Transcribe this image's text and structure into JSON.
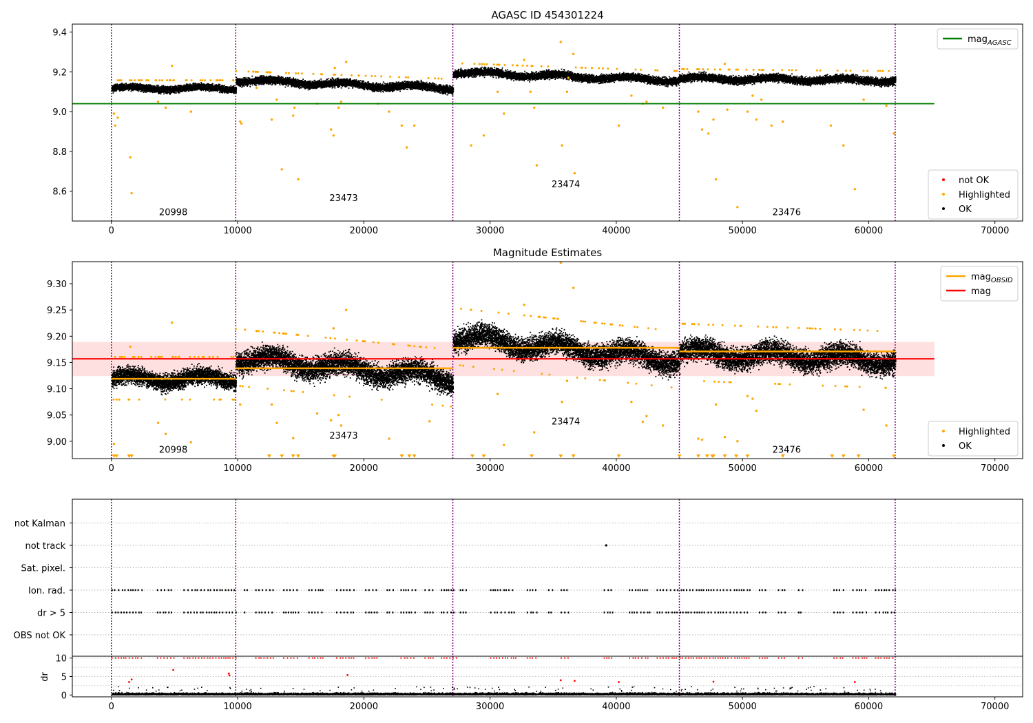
{
  "figure": {
    "title": "AGASC ID 454301224"
  },
  "chart_data": [
    {
      "type": "scatter",
      "title": "",
      "xlim": [
        -3100,
        72200
      ],
      "ylim": [
        8.45,
        9.44
      ],
      "xticks": [
        0,
        10000,
        20000,
        30000,
        40000,
        50000,
        60000,
        70000
      ],
      "yticks": [
        8.6,
        8.8,
        9.0,
        9.2,
        9.4
      ],
      "ytick_labels": [
        "8.6",
        "8.8",
        "9.0",
        "9.2",
        "9.4"
      ],
      "obsid_boundaries": [
        0,
        9850,
        27050,
        45000,
        62100
      ],
      "obsid_labels": [
        {
          "text": "20998",
          "x": 4900,
          "y": 8.48
        },
        {
          "text": "23473",
          "x": 18400,
          "y": 8.55
        },
        {
          "text": "23474",
          "x": 36000,
          "y": 8.62
        },
        {
          "text": "23476",
          "x": 53500,
          "y": 8.48
        }
      ],
      "lines": [
        {
          "name": "mag_AGASC",
          "color": "#008000",
          "x": [
            -3100,
            65200
          ],
          "y": [
            9.04,
            9.04
          ]
        }
      ],
      "segments": [
        {
          "x0": 0,
          "x1": 9850,
          "y0": 9.12,
          "y1": 9.12,
          "spread": 0.03
        },
        {
          "x0": 9850,
          "x1": 27050,
          "y0": 9.16,
          "y1": 9.12,
          "spread": 0.035
        },
        {
          "x0": 27050,
          "x1": 45000,
          "y0": 9.2,
          "y1": 9.16,
          "spread": 0.035
        },
        {
          "x0": 45000,
          "x1": 62100,
          "y0": 9.17,
          "y1": 9.16,
          "spread": 0.035
        }
      ],
      "highlighted": [
        [
          200,
          8.99
        ],
        [
          300,
          8.93
        ],
        [
          500,
          8.97
        ],
        [
          1500,
          8.77
        ],
        [
          1600,
          8.59
        ],
        [
          3700,
          9.05
        ],
        [
          4300,
          9.02
        ],
        [
          4800,
          9.23
        ],
        [
          6300,
          9.0
        ],
        [
          10200,
          8.95
        ],
        [
          10300,
          8.94
        ],
        [
          11500,
          9.12
        ],
        [
          12700,
          8.96
        ],
        [
          13100,
          9.06
        ],
        [
          13500,
          8.71
        ],
        [
          14400,
          8.98
        ],
        [
          14500,
          9.02
        ],
        [
          14800,
          8.66
        ],
        [
          16300,
          9.04
        ],
        [
          17400,
          8.91
        ],
        [
          17600,
          8.88
        ],
        [
          17700,
          9.22
        ],
        [
          18000,
          9.02
        ],
        [
          18200,
          9.05
        ],
        [
          18600,
          9.25
        ],
        [
          21100,
          9.04
        ],
        [
          22000,
          9.0
        ],
        [
          23000,
          8.93
        ],
        [
          23400,
          8.82
        ],
        [
          24000,
          8.93
        ],
        [
          28500,
          8.83
        ],
        [
          29500,
          8.88
        ],
        [
          30600,
          9.1
        ],
        [
          31100,
          8.99
        ],
        [
          32700,
          9.26
        ],
        [
          33200,
          9.1
        ],
        [
          33500,
          9.02
        ],
        [
          33700,
          8.73
        ],
        [
          35600,
          9.35
        ],
        [
          35700,
          8.83
        ],
        [
          36100,
          9.1
        ],
        [
          36200,
          9.17
        ],
        [
          36600,
          9.29
        ],
        [
          36700,
          8.69
        ],
        [
          40200,
          8.93
        ],
        [
          41200,
          9.08
        ],
        [
          42100,
          9.04
        ],
        [
          42400,
          9.05
        ],
        [
          43700,
          9.02
        ],
        [
          46500,
          9.0
        ],
        [
          46800,
          8.91
        ],
        [
          47300,
          8.89
        ],
        [
          47700,
          8.96
        ],
        [
          47900,
          8.66
        ],
        [
          48600,
          9.24
        ],
        [
          48800,
          9.01
        ],
        [
          49600,
          8.52
        ],
        [
          50400,
          9.0
        ],
        [
          50800,
          9.08
        ],
        [
          51100,
          8.96
        ],
        [
          51500,
          9.06
        ],
        [
          52300,
          8.93
        ],
        [
          53200,
          8.95
        ],
        [
          57000,
          8.93
        ],
        [
          58000,
          8.83
        ],
        [
          58900,
          8.61
        ],
        [
          59600,
          9.06
        ],
        [
          61400,
          9.03
        ],
        [
          62000,
          8.89
        ]
      ],
      "legend_upper": [
        {
          "label": "mag",
          "sub": "AGASC",
          "kind": "line",
          "color": "#008000"
        }
      ],
      "legend_lower": [
        {
          "label": "not OK",
          "kind": "dot",
          "color": "#ff0000"
        },
        {
          "label": "Highlighted",
          "kind": "dot",
          "color": "#ffa500"
        },
        {
          "label": "OK",
          "kind": "dot",
          "color": "#000000"
        }
      ]
    },
    {
      "type": "scatter",
      "title": "Magnitude Estimates",
      "xlim": [
        -3100,
        72200
      ],
      "ylim": [
        8.967,
        9.342
      ],
      "xticks": [
        0,
        10000,
        20000,
        30000,
        40000,
        50000,
        60000,
        70000
      ],
      "yticks": [
        9.0,
        9.05,
        9.1,
        9.15,
        9.2,
        9.25,
        9.3
      ],
      "ytick_labels": [
        "9.00",
        "9.05",
        "9.10",
        "9.15",
        "9.20",
        "9.25",
        "9.30"
      ],
      "obsid_boundaries": [
        0,
        9850,
        27050,
        45000,
        62100
      ],
      "obsid_labels": [
        {
          "text": "20998",
          "x": 4900,
          "y": 8.978
        },
        {
          "text": "23473",
          "x": 18400,
          "y": 9.005
        },
        {
          "text": "23474",
          "x": 36000,
          "y": 9.032
        },
        {
          "text": "23476",
          "x": 53500,
          "y": 8.978
        }
      ],
      "band": {
        "x0": -3100,
        "x1": 65200,
        "y0": 9.124,
        "y1": 9.189,
        "color": "#ff0000",
        "opacity": 0.12
      },
      "lines": [
        {
          "name": "mag",
          "color": "#ff0000",
          "x": [
            -3100,
            65200
          ],
          "y": [
            9.157,
            9.157
          ]
        }
      ],
      "obsid_mags": [
        {
          "x0": 0,
          "x1": 9850,
          "y": 9.119
        },
        {
          "x0": 9850,
          "x1": 27050,
          "y": 9.139
        },
        {
          "x0": 27050,
          "x1": 45000,
          "y": 9.178
        },
        {
          "x0": 45000,
          "x1": 62100,
          "y": 9.171
        }
      ],
      "segments": [
        {
          "x0": 0,
          "x1": 9850,
          "y0": 9.12,
          "y1": 9.12,
          "spread": 0.03
        },
        {
          "x0": 9850,
          "x1": 27050,
          "y0": 9.16,
          "y1": 9.12,
          "spread": 0.04
        },
        {
          "x0": 27050,
          "x1": 45000,
          "y0": 9.2,
          "y1": 9.155,
          "spread": 0.04
        },
        {
          "x0": 45000,
          "x1": 62100,
          "y0": 9.17,
          "y1": 9.155,
          "spread": 0.04
        }
      ],
      "highlighted": [
        [
          200,
          8.995
        ],
        [
          1500,
          9.18
        ],
        [
          3700,
          9.035
        ],
        [
          4300,
          9.014
        ],
        [
          4800,
          9.226
        ],
        [
          6300,
          8.998
        ],
        [
          10200,
          9.07
        ],
        [
          11500,
          9.21
        ],
        [
          12700,
          9.07
        ],
        [
          13100,
          9.035
        ],
        [
          14400,
          9.006
        ],
        [
          16300,
          9.053
        ],
        [
          17400,
          9.04
        ],
        [
          17600,
          9.215
        ],
        [
          18000,
          9.05
        ],
        [
          18200,
          9.03
        ],
        [
          18600,
          9.25
        ],
        [
          22000,
          9.005
        ],
        [
          25200,
          9.038
        ],
        [
          30600,
          9.09
        ],
        [
          31100,
          8.993
        ],
        [
          32700,
          9.26
        ],
        [
          33500,
          9.017
        ],
        [
          35600,
          9.34
        ],
        [
          35700,
          9.075
        ],
        [
          36100,
          9.115
        ],
        [
          36600,
          9.292
        ],
        [
          41200,
          9.075
        ],
        [
          42100,
          9.037
        ],
        [
          42400,
          9.048
        ],
        [
          43700,
          9.03
        ],
        [
          46500,
          9.005
        ],
        [
          46800,
          9.003
        ],
        [
          47900,
          9.07
        ],
        [
          48600,
          9.008
        ],
        [
          49600,
          9.0
        ],
        [
          50400,
          9.086
        ],
        [
          50800,
          9.081
        ],
        [
          51100,
          9.058
        ],
        [
          59600,
          9.06
        ],
        [
          61400,
          9.03
        ]
      ],
      "lower_limit_markers": [
        200,
        400,
        1400,
        1600,
        12500,
        13500,
        14400,
        14800,
        17600,
        17700,
        23000,
        23600,
        24000,
        28600,
        29500,
        33300,
        35600,
        36600,
        40200,
        45000,
        46500,
        47200,
        47600,
        47700,
        48600,
        49500,
        50400,
        53200,
        57100,
        58000,
        59200,
        62000
      ],
      "legend_upper": [
        {
          "label": "mag",
          "sub": "OBSID",
          "kind": "line",
          "color": "#ffa500"
        },
        {
          "label": "mag",
          "sub": "",
          "kind": "line",
          "color": "#ff0000"
        }
      ],
      "legend_lower": [
        {
          "label": "Highlighted",
          "kind": "dot",
          "color": "#ffa500"
        },
        {
          "label": "OK",
          "kind": "dot",
          "color": "#000000"
        }
      ]
    },
    {
      "type": "scatter",
      "title": "",
      "xlim": [
        -3100,
        72200
      ],
      "categories": [
        "OBS not OK",
        "dr > 5",
        "Ion. rad.",
        "Sat. pixel.",
        "not track",
        "not Kalman"
      ],
      "obsid_boundaries": [
        0,
        9850,
        27050,
        45000,
        62100
      ],
      "not_track_points": [
        [
          39200,
          4
        ]
      ]
    },
    {
      "type": "scatter",
      "title": "",
      "ylabel": "dr",
      "xlim": [
        -3100,
        72200
      ],
      "ylim": [
        -0.5,
        10.5
      ],
      "xticks": [
        0,
        10000,
        20000,
        30000,
        40000,
        50000,
        60000,
        70000
      ],
      "yticks": [
        0,
        5,
        10
      ],
      "obsid_boundaries": [
        0,
        9850,
        27050,
        45000,
        62100
      ],
      "dr_outliers": [
        [
          1400,
          3.5
        ],
        [
          1600,
          4.2
        ],
        [
          4900,
          6.8
        ],
        [
          9300,
          5.8
        ],
        [
          9350,
          5.3
        ],
        [
          18700,
          5.4
        ],
        [
          35600,
          4.0
        ],
        [
          36700,
          3.8
        ],
        [
          40200,
          3.5
        ],
        [
          47700,
          3.6
        ],
        [
          58900,
          3.5
        ]
      ]
    }
  ]
}
